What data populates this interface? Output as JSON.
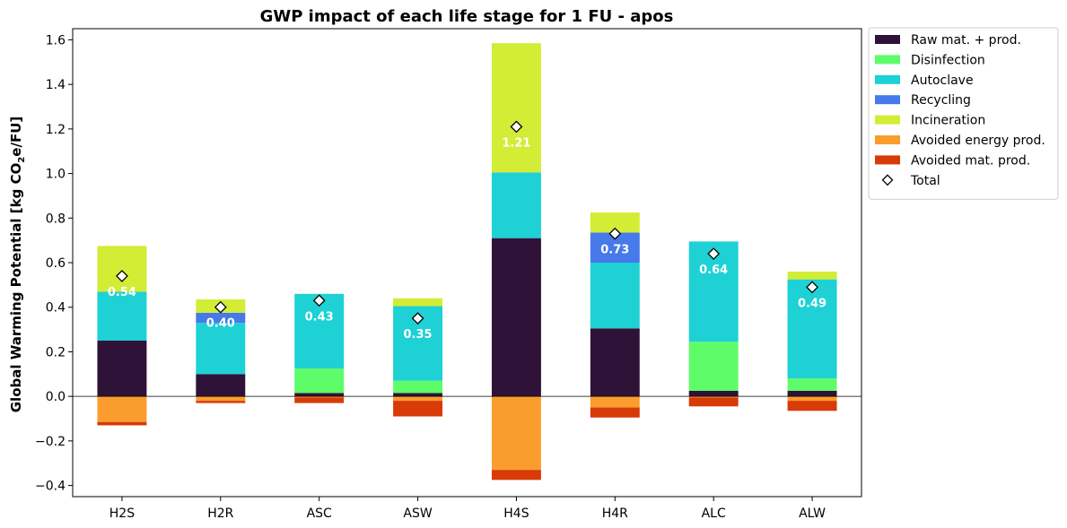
{
  "chart_data": {
    "type": "bar",
    "stacked": true,
    "title": "GWP impact of each life stage for 1 FU - apos",
    "xlabel": "",
    "ylabel_prefix": "Global Warming Potential [kg CO",
    "ylabel_sub": "2",
    "ylabel_suffix": "e/FU]",
    "ylim": [
      -0.45,
      1.65
    ],
    "yticks": [
      -0.4,
      -0.2,
      0.0,
      0.2,
      0.4,
      0.6,
      0.8,
      1.0,
      1.2,
      1.4,
      1.6
    ],
    "ytick_labels": [
      "−0.4",
      "−0.2",
      "0.0",
      "0.2",
      "0.4",
      "0.6",
      "0.8",
      "1.0",
      "1.2",
      "1.4",
      "1.6"
    ],
    "categories": [
      "H2S",
      "H2R",
      "ASC",
      "ASW",
      "H4S",
      "H4R",
      "ALC",
      "ALW"
    ],
    "series": [
      {
        "name": "Raw mat. + prod.",
        "color": "#2f1238",
        "values": [
          0.25,
          0.1,
          0.015,
          0.015,
          0.71,
          0.305,
          0.025,
          0.025
        ]
      },
      {
        "name": "Disinfection",
        "color": "#5ffc6a",
        "values": [
          0.0,
          0.0,
          0.11,
          0.055,
          0.0,
          0.0,
          0.22,
          0.055
        ]
      },
      {
        "name": "Autoclave",
        "color": "#1dd1d4",
        "values": [
          0.22,
          0.23,
          0.335,
          0.335,
          0.295,
          0.295,
          0.45,
          0.445
        ]
      },
      {
        "name": "Recycling",
        "color": "#4679ea",
        "values": [
          0.0,
          0.045,
          0.0,
          0.0,
          0.0,
          0.135,
          0.0,
          0.0
        ]
      },
      {
        "name": "Incineration",
        "color": "#d3ec35",
        "values": [
          0.205,
          0.06,
          0.0,
          0.035,
          0.58,
          0.09,
          0.0,
          0.035
        ]
      },
      {
        "name": "Avoided energy prod.",
        "color": "#fb9c2e",
        "values": [
          -0.115,
          -0.02,
          -0.005,
          -0.02,
          -0.33,
          -0.05,
          -0.005,
          -0.02
        ]
      },
      {
        "name": "Avoided mat. prod.",
        "color": "#d83a08",
        "values": [
          -0.015,
          -0.01,
          -0.025,
          -0.07,
          -0.045,
          -0.045,
          -0.04,
          -0.045
        ]
      }
    ],
    "totals": {
      "name": "Total",
      "values": [
        0.54,
        0.4,
        0.43,
        0.35,
        1.21,
        0.73,
        0.64,
        0.49
      ],
      "labels": [
        "0.54",
        "0.40",
        "0.43",
        "0.35",
        "1.21",
        "0.73",
        "0.64",
        "0.49"
      ]
    },
    "legend": "outside-upper-right",
    "grid": false,
    "zero_line": true
  }
}
